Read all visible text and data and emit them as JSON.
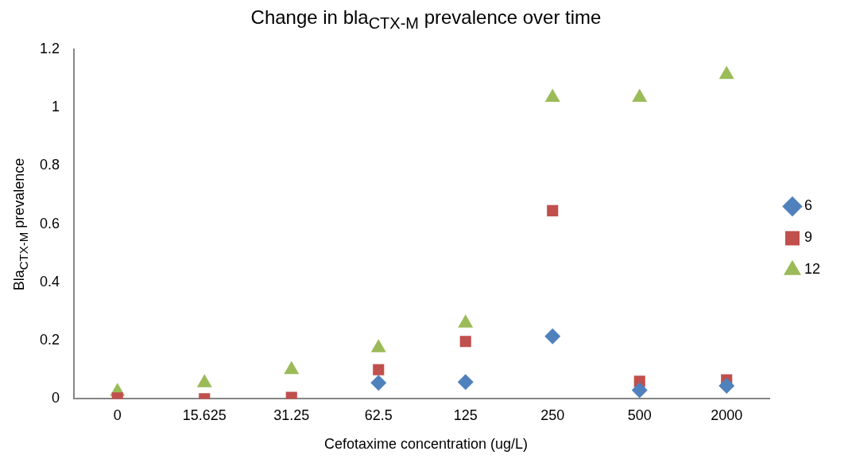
{
  "chart_data": {
    "type": "scatter",
    "title": "Change in bla$_{CTX-M}$ prevalence over time",
    "xlabel": "Cefotaxime concentration (ug/L)",
    "ylabel": "Bla$_{CTX-M}$ prevalence",
    "categories": [
      "0",
      "15.625",
      "31.25",
      "62.5",
      "125",
      "250",
      "500",
      "2000"
    ],
    "ylim": [
      0,
      1.2
    ],
    "yticks": [
      0,
      0.2,
      0.4,
      0.6,
      0.8,
      1,
      1.2
    ],
    "grid": false,
    "legend": "right",
    "series": [
      {
        "name": "6",
        "color": "#4f81bd",
        "marker": "diamond",
        "values": [
          null,
          null,
          null,
          0.055,
          0.058,
          0.215,
          0.03,
          0.045
        ]
      },
      {
        "name": "9",
        "color": "#c0504d",
        "marker": "square",
        "values": [
          0.003,
          0,
          0.005,
          0.1,
          0.197,
          0.646,
          0.06,
          0.065
        ]
      },
      {
        "name": "12",
        "color": "#9bbb59",
        "marker": "triangle",
        "values": [
          0.025,
          0.055,
          0.1,
          0.175,
          0.26,
          1.035,
          1.035,
          1.113
        ]
      }
    ]
  }
}
